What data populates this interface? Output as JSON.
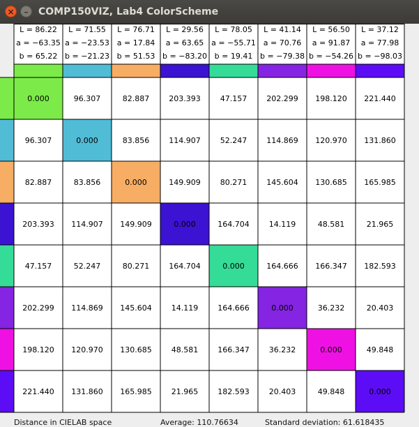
{
  "window": {
    "title": "COMP150VIZ, Lab4 ColorScheme",
    "close_glyph": "×",
    "minimize_glyph": "–"
  },
  "colors": [
    {
      "L": "L = 86.22",
      "a": "a = −63.35",
      "b": "b = 65.22",
      "hex": "#7ceb49"
    },
    {
      "L": "L = 71.55",
      "a": "a = −23.53",
      "b": "b = −21.23",
      "hex": "#50bcd6"
    },
    {
      "L": "L = 76.71",
      "a": "a = 17.84",
      "b": "b = 51.53",
      "hex": "#f7ad63"
    },
    {
      "L": "L = 29.56",
      "a": "a = 63.65",
      "b": "b = −83.20",
      "hex": "#3c12d3"
    },
    {
      "L": "L = 78.05",
      "a": "a = −55.71",
      "b": "b = 19.41",
      "hex": "#35dc98"
    },
    {
      "L": "L = 41.14",
      "a": "a = 70.76",
      "b": "b = −79.38",
      "hex": "#8524e3"
    },
    {
      "L": "L = 56.50",
      "a": "a = 91.87",
      "b": "b = −54.26",
      "hex": "#ef11e3"
    },
    {
      "L": "L = 37.12",
      "a": "a = 77.98",
      "b": "b = −98.03",
      "hex": "#5c0df5"
    }
  ],
  "distances": [
    [
      "0.000",
      "96.307",
      "82.887",
      "203.393",
      "47.157",
      "202.299",
      "198.120",
      "221.440"
    ],
    [
      "96.307",
      "0.000",
      "83.856",
      "114.907",
      "52.247",
      "114.869",
      "120.970",
      "131.860"
    ],
    [
      "82.887",
      "83.856",
      "0.000",
      "149.909",
      "80.271",
      "145.604",
      "130.685",
      "165.985"
    ],
    [
      "203.393",
      "114.907",
      "149.909",
      "0.000",
      "164.704",
      "14.119",
      "48.581",
      "21.965"
    ],
    [
      "47.157",
      "52.247",
      "80.271",
      "164.704",
      "0.000",
      "164.666",
      "166.347",
      "182.593"
    ],
    [
      "202.299",
      "114.869",
      "145.604",
      "14.119",
      "164.666",
      "0.000",
      "36.232",
      "20.403"
    ],
    [
      "198.120",
      "120.970",
      "130.685",
      "48.581",
      "166.347",
      "36.232",
      "0.000",
      "49.848"
    ],
    [
      "221.440",
      "131.860",
      "165.985",
      "21.965",
      "182.593",
      "20.403",
      "49.848",
      "0.000"
    ]
  ],
  "status": {
    "left": "Distance in CIELAB space",
    "average": "Average: 110.76634",
    "stddev": "Standard deviation: 61.618435"
  }
}
